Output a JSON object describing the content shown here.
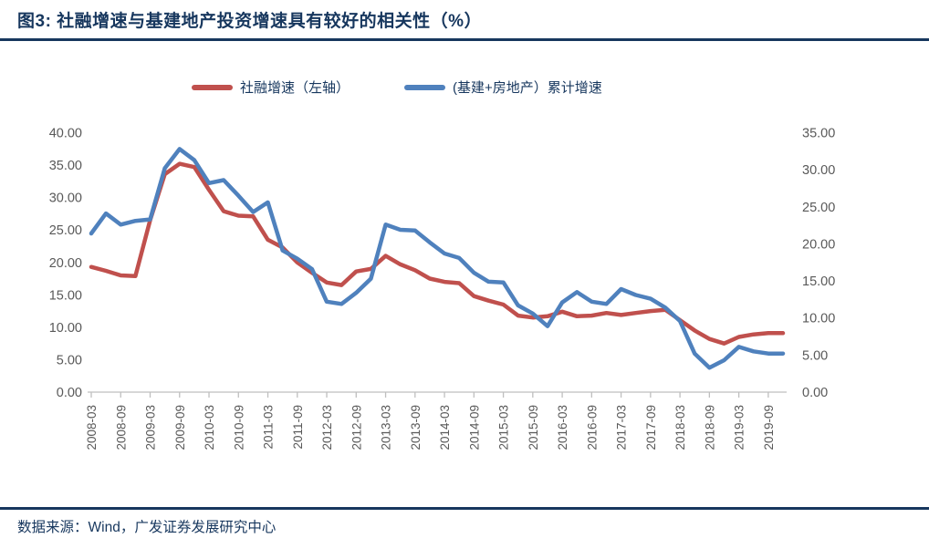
{
  "header": {
    "title": "图3: 社融增速与基建地产投资增速具有较好的相关性（%）"
  },
  "footer": {
    "source": "数据来源：Wind，广发证券发展研究中心"
  },
  "legend": {
    "items": [
      {
        "label": "社融增速（左轴）"
      },
      {
        "label": "(基建+房地产）累计增速"
      }
    ]
  },
  "chart_data": {
    "type": "line",
    "title": "图3: 社融增速与基建地产投资增速具有较好的相关性（%）",
    "unit": "%",
    "grid": false,
    "legend_position": "top",
    "x_tick_labels": [
      "2008-03",
      "2008-09",
      "2009-03",
      "2009-09",
      "2010-03",
      "2010-09",
      "2011-03",
      "2011-09",
      "2012-03",
      "2012-09",
      "2013-03",
      "2013-09",
      "2014-03",
      "2014-09",
      "2015-03",
      "2015-09",
      "2016-03",
      "2016-09",
      "2017-03",
      "2017-09",
      "2018-03",
      "2018-09",
      "2019-03",
      "2019-09"
    ],
    "x": [
      "2008-03",
      "2008-06",
      "2008-09",
      "2008-12",
      "2009-03",
      "2009-06",
      "2009-09",
      "2009-12",
      "2010-03",
      "2010-06",
      "2010-09",
      "2010-12",
      "2011-03",
      "2011-06",
      "2011-09",
      "2011-12",
      "2012-03",
      "2012-06",
      "2012-09",
      "2012-12",
      "2013-03",
      "2013-06",
      "2013-09",
      "2013-12",
      "2014-03",
      "2014-06",
      "2014-09",
      "2014-12",
      "2015-03",
      "2015-06",
      "2015-09",
      "2015-12",
      "2016-03",
      "2016-06",
      "2016-09",
      "2016-12",
      "2017-03",
      "2017-06",
      "2017-09",
      "2017-12",
      "2018-03",
      "2018-06",
      "2018-09",
      "2018-12",
      "2019-03",
      "2019-06",
      "2019-09",
      "2019-12"
    ],
    "left_axis": {
      "min": 0,
      "max": 40,
      "step": 5,
      "ticks": [
        "0.00",
        "5.00",
        "10.00",
        "15.00",
        "20.00",
        "25.00",
        "30.00",
        "35.00",
        "40.00"
      ]
    },
    "right_axis": {
      "min": 0,
      "max": 35,
      "step": 5,
      "ticks": [
        "0.00",
        "5.00",
        "10.00",
        "15.00",
        "20.00",
        "25.00",
        "30.00",
        "35.00"
      ]
    },
    "series": [
      {
        "name": "社融增速（左轴）",
        "axis": "left",
        "color": "#C0504D",
        "values": [
          19.3,
          18.7,
          18.0,
          17.9,
          26.5,
          33.6,
          35.2,
          34.7,
          31.2,
          27.9,
          27.2,
          27.1,
          23.5,
          22.3,
          20.0,
          18.4,
          16.9,
          16.5,
          18.6,
          19.0,
          21.0,
          19.7,
          18.8,
          17.5,
          17.0,
          16.8,
          14.8,
          14.1,
          13.5,
          11.8,
          11.5,
          11.7,
          12.4,
          11.7,
          11.8,
          12.2,
          11.9,
          12.2,
          12.5,
          12.7,
          11.1,
          9.5,
          8.2,
          7.5,
          8.5,
          8.9,
          9.1,
          9.1
        ]
      },
      {
        "name": "(基建+房地产）累计增速",
        "axis": "right",
        "color": "#4F81BD",
        "values": [
          21.4,
          24.1,
          22.6,
          23.1,
          23.3,
          30.2,
          32.8,
          31.3,
          28.2,
          28.6,
          26.5,
          24.3,
          25.6,
          19.1,
          18.0,
          16.6,
          12.2,
          11.9,
          13.4,
          15.3,
          22.6,
          21.9,
          21.8,
          20.2,
          18.7,
          18.1,
          16.1,
          14.9,
          14.8,
          11.7,
          10.6,
          8.9,
          12.1,
          13.5,
          12.2,
          11.9,
          13.9,
          13.1,
          12.6,
          11.4,
          9.6,
          5.2,
          3.3,
          4.3,
          6.1,
          5.5,
          5.2,
          5.2
        ]
      }
    ],
    "colors": {
      "accent_navy": "#17375e",
      "axis_text": "#595959",
      "axis_line": "#bfbfbf"
    }
  }
}
